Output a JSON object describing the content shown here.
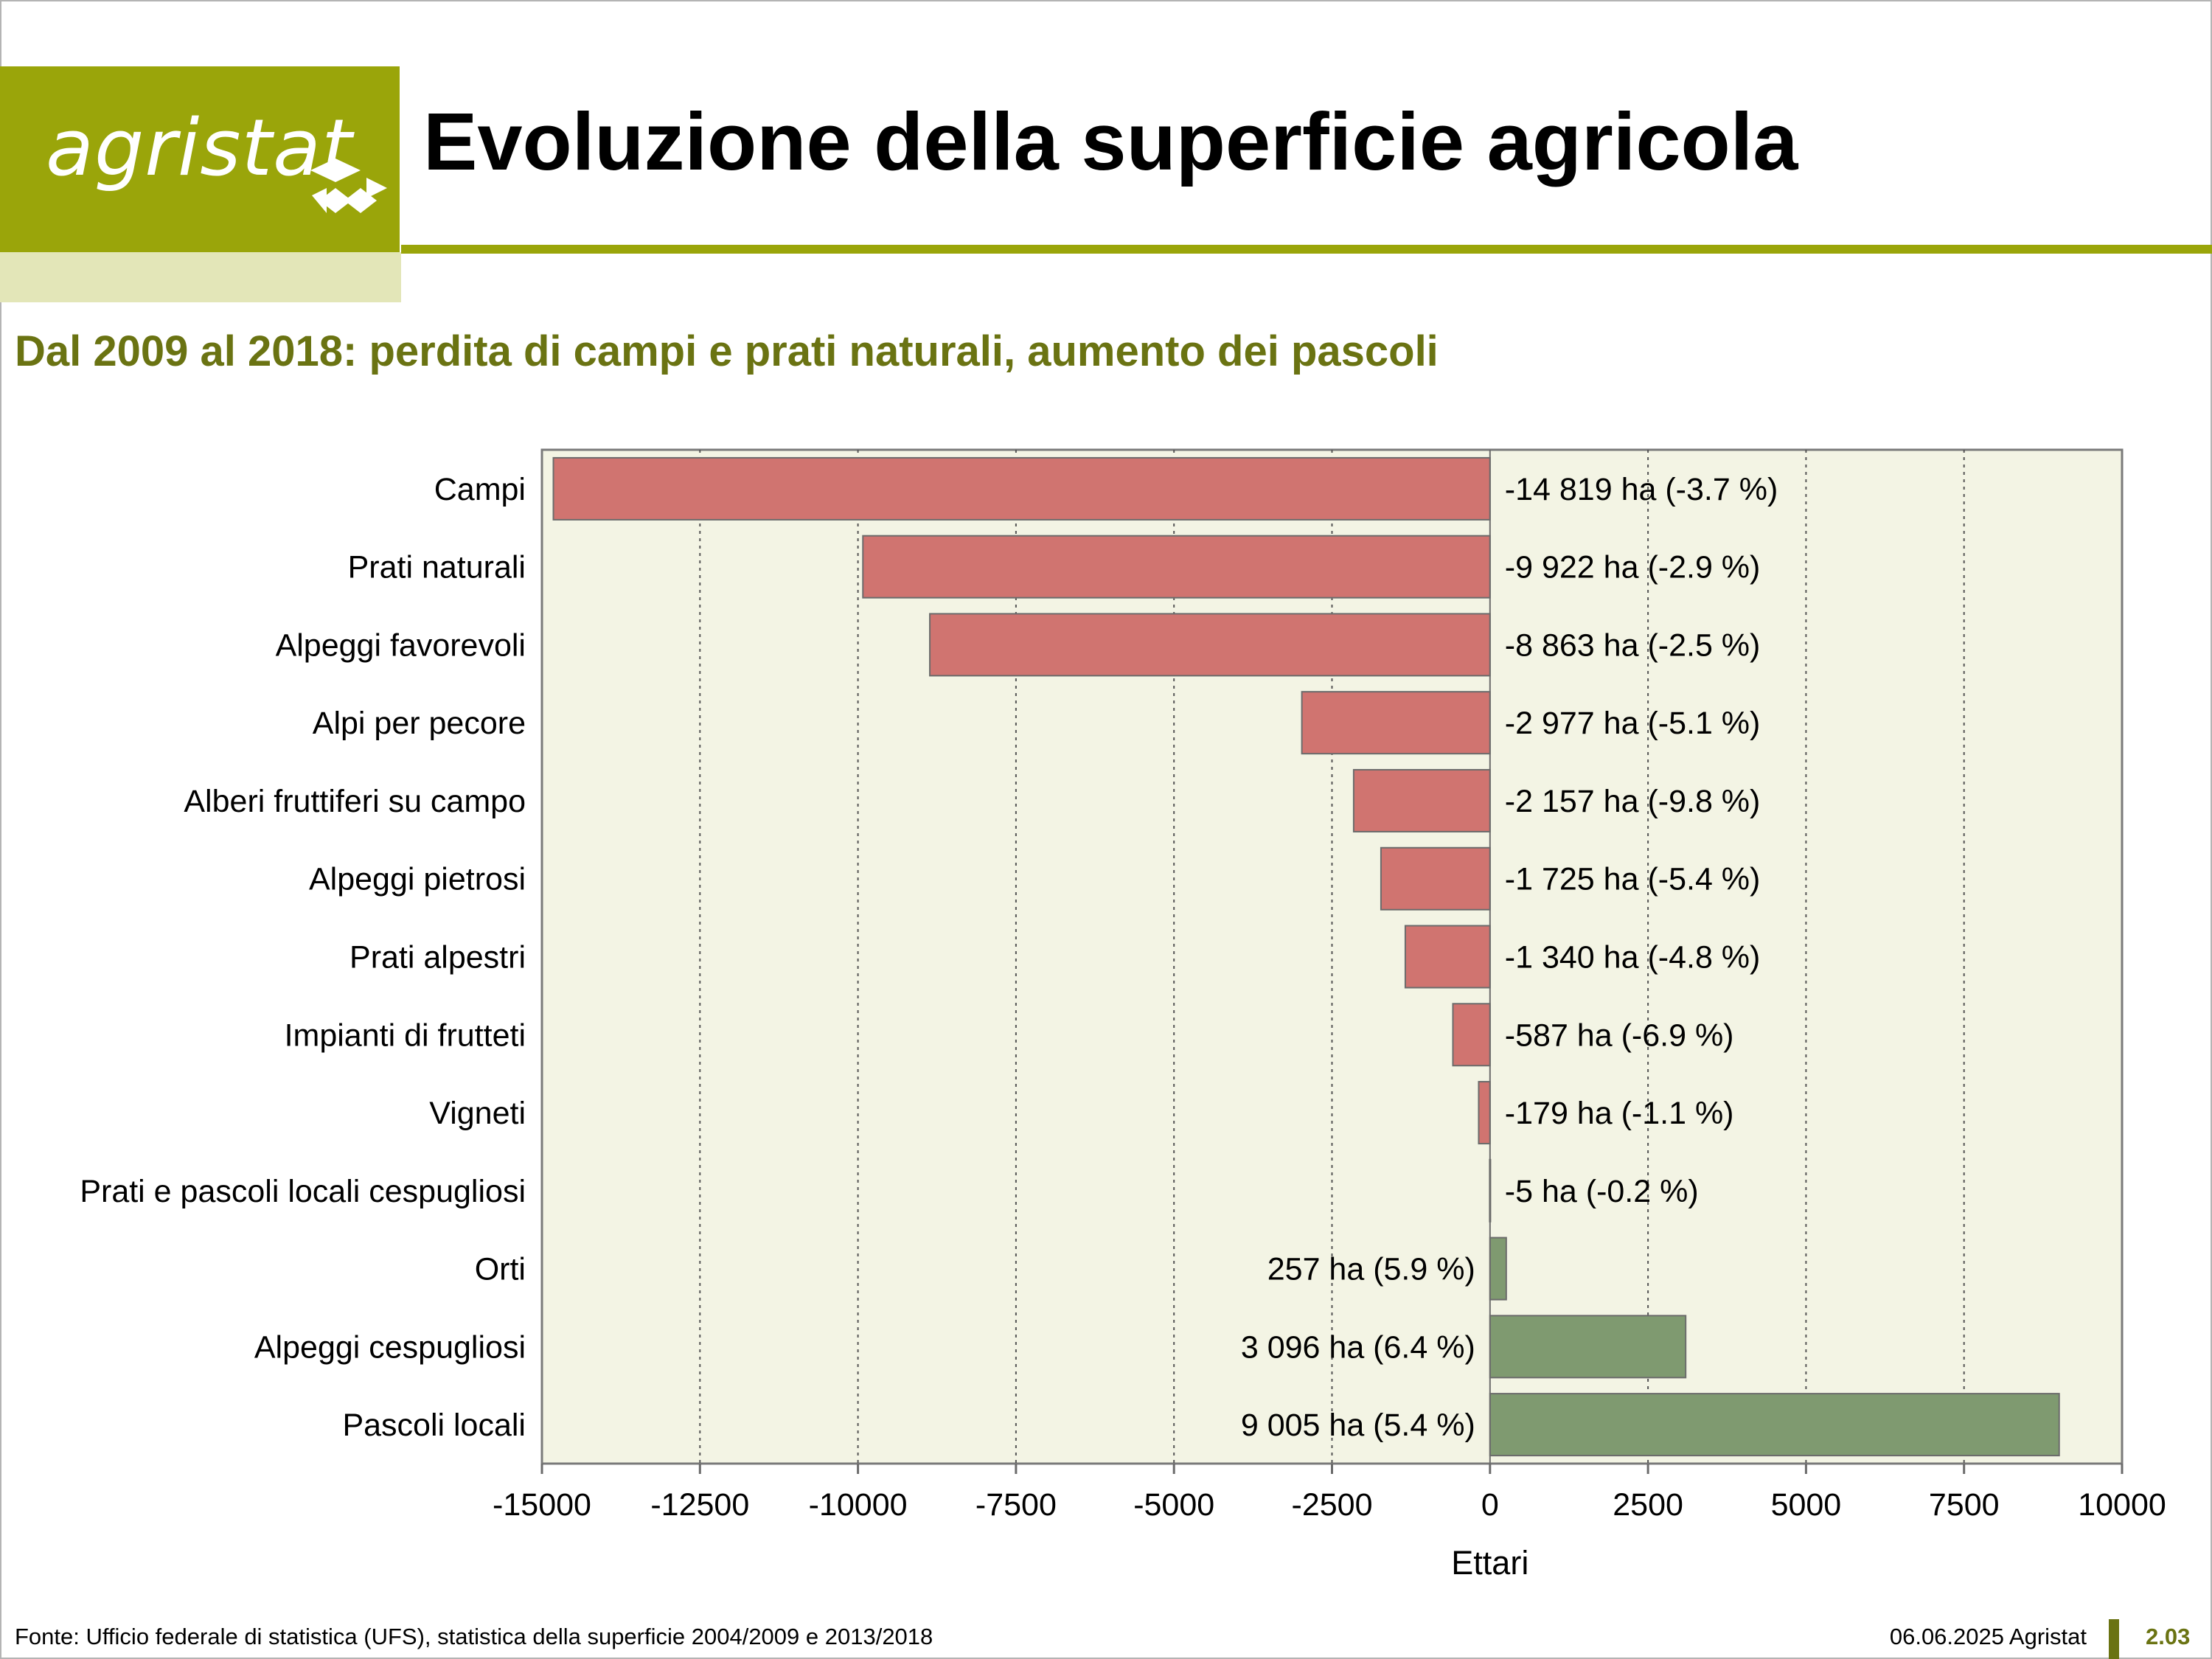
{
  "header": {
    "logo_text": "agristat",
    "title": "Evoluzione della superficie agricola"
  },
  "subtitle": "Dal 2009 al 2018: perdita di campi e prati naturali, aumento dei pascoli",
  "colors": {
    "brand": "#9aa50a",
    "brand_pale": "#e3e6b8",
    "subtitle": "#6a7312",
    "negative_bar": "#d07470",
    "positive_bar": "#7f9a70",
    "plot_background": "#f3f4e4"
  },
  "chart_data": {
    "type": "bar",
    "orientation": "horizontal",
    "categories": [
      "Campi",
      "Prati naturali",
      "Alpeggi favorevoli",
      "Alpi per pecore",
      "Alberi fruttiferi su campo",
      "Alpeggi pietrosi",
      "Prati alpestri",
      "Impianti di frutteti",
      "Vigneti",
      "Prati e pascoli locali cespugliosi",
      "Orti",
      "Alpeggi cespugliosi",
      "Pascoli locali"
    ],
    "values": [
      -14819,
      -9922,
      -8863,
      -2977,
      -2157,
      -1725,
      -1340,
      -587,
      -179,
      -5,
      257,
      3096,
      9005
    ],
    "data_labels": [
      "-14 819 ha (-3.7 %)",
      "-9 922 ha (-2.9 %)",
      "-8 863 ha (-2.5 %)",
      "-2 977 ha (-5.1 %)",
      "-2 157 ha (-9.8 %)",
      "-1 725 ha (-5.4 %)",
      "-1 340 ha (-4.8 %)",
      "-587 ha (-6.9 %)",
      "-179 ha (-1.1 %)",
      "-5 ha (-0.2 %)",
      "257 ha (5.9 %)",
      "3 096 ha (6.4 %)",
      "9 005 ha (5.4 %)"
    ],
    "xlim": [
      -15000,
      10000
    ],
    "xticks": [
      -15000,
      -12500,
      -10000,
      -7500,
      -5000,
      -2500,
      0,
      2500,
      5000,
      7500,
      10000
    ],
    "xtick_labels": [
      "-15000",
      "-12500",
      "-10000",
      "-7500",
      "-5000",
      "-2500",
      "0",
      "2500",
      "5000",
      "7500",
      "10000"
    ],
    "xlabel": "Ettari",
    "ylabel": "",
    "grid": "vertical dotted",
    "legend": "none"
  },
  "footer": {
    "source": "Fonte: Ufficio federale di statistica (UFS), statistica della superficie 2004/2009 e 2013/2018",
    "date": "06.06.2025 Agristat",
    "page": "2.03"
  }
}
